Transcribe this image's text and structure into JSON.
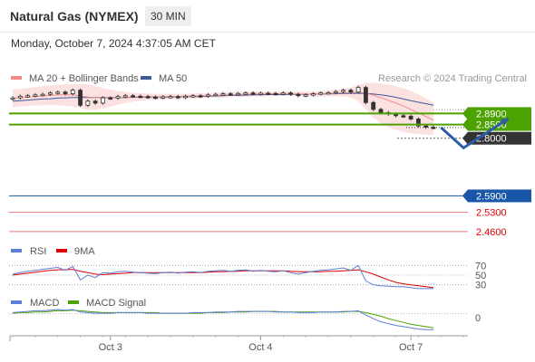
{
  "header": {
    "title": "Natural Gas (NYMEX)",
    "timeframe": "30 MIN",
    "datetime": "Monday, October 7, 2024 4:37:05 AM CET"
  },
  "colors": {
    "ma20": "#f08a8a",
    "bollinger_fill": "#fbdcdc",
    "ma50": "#3d5a99",
    "candle": "#333333",
    "green_level": "#4ca200",
    "blue_level": "#1a56a8",
    "red_level": "#e87878",
    "arrow": "#2e5da8",
    "rsi": "#5b7fd6",
    "rsi_9ma": "#e00000",
    "macd": "#5b7fd6",
    "macd_signal": "#4ca200"
  },
  "chart_data": [
    {
      "type": "candlestick",
      "panel": "price",
      "legend": [
        {
          "name": "MA 20 + Bollinger Bands",
          "color": "#f08a8a"
        },
        {
          "name": "MA 50",
          "color": "#3d5a99"
        }
      ],
      "credit": "Research © 2024 Trading Central",
      "x_ticks": [
        {
          "label": "Oct 3",
          "index": 13
        },
        {
          "label": "Oct 4",
          "index": 33
        },
        {
          "label": "Oct 7",
          "index": 53
        }
      ],
      "ylim": [
        2.42,
        3.02
      ],
      "close": [
        2.947,
        2.953,
        2.955,
        2.958,
        2.96,
        2.965,
        2.968,
        2.962,
        2.975,
        2.92,
        2.935,
        2.928,
        2.947,
        2.946,
        2.952,
        2.955,
        2.953,
        2.952,
        2.95,
        2.948,
        2.951,
        2.952,
        2.949,
        2.953,
        2.955,
        2.953,
        2.958,
        2.96,
        2.962,
        2.96,
        2.963,
        2.965,
        2.962,
        2.964,
        2.963,
        2.962,
        2.965,
        2.96,
        2.955,
        2.958,
        2.962,
        2.965,
        2.966,
        2.97,
        2.975,
        2.968,
        2.985,
        2.93,
        2.905,
        2.893,
        2.888,
        2.882,
        2.88,
        2.87,
        2.845,
        2.84,
        2.839
      ],
      "ma20": [
        2.945,
        2.948,
        2.95,
        2.952,
        2.954,
        2.956,
        2.958,
        2.958,
        2.958,
        2.954,
        2.95,
        2.948,
        2.947,
        2.947,
        2.948,
        2.949,
        2.95,
        2.951,
        2.951,
        2.951,
        2.951,
        2.952,
        2.952,
        2.953,
        2.954,
        2.954,
        2.955,
        2.956,
        2.957,
        2.958,
        2.959,
        2.96,
        2.961,
        2.961,
        2.962,
        2.962,
        2.962,
        2.962,
        2.961,
        2.961,
        2.961,
        2.962,
        2.963,
        2.964,
        2.966,
        2.966,
        2.968,
        2.964,
        2.957,
        2.948,
        2.938,
        2.928,
        2.917,
        2.905,
        2.892,
        2.879,
        2.866
      ],
      "bb_upper": [
        2.978,
        2.98,
        2.983,
        2.986,
        2.99,
        2.993,
        2.995,
        2.996,
        2.997,
        2.998,
        2.996,
        2.99,
        2.983,
        2.977,
        2.972,
        2.969,
        2.966,
        2.964,
        2.963,
        2.962,
        2.962,
        2.962,
        2.962,
        2.962,
        2.963,
        2.964,
        2.965,
        2.966,
        2.968,
        2.969,
        2.97,
        2.97,
        2.97,
        2.97,
        2.97,
        2.97,
        2.97,
        2.97,
        2.97,
        2.97,
        2.97,
        2.971,
        2.973,
        2.976,
        2.98,
        2.985,
        2.995,
        3.0,
        3.002,
        3.0,
        2.995,
        2.99,
        2.982,
        2.972,
        2.96,
        2.945,
        2.93
      ],
      "bb_lower": [
        2.912,
        2.915,
        2.918,
        2.919,
        2.92,
        2.92,
        2.92,
        2.918,
        2.915,
        2.91,
        2.904,
        2.904,
        2.908,
        2.915,
        2.922,
        2.928,
        2.933,
        2.937,
        2.939,
        2.94,
        2.941,
        2.942,
        2.942,
        2.943,
        2.944,
        2.945,
        2.946,
        2.947,
        2.948,
        2.949,
        2.95,
        2.951,
        2.952,
        2.952,
        2.953,
        2.954,
        2.954,
        2.954,
        2.953,
        2.952,
        2.951,
        2.951,
        2.952,
        2.952,
        2.952,
        2.948,
        2.935,
        2.905,
        2.875,
        2.855,
        2.84,
        2.83,
        2.823,
        2.818,
        2.815,
        2.813,
        2.812
      ],
      "ma50": [
        2.935,
        2.937,
        2.939,
        2.941,
        2.943,
        2.944,
        2.946,
        2.947,
        2.948,
        2.948,
        2.948,
        2.948,
        2.948,
        2.948,
        2.948,
        2.948,
        2.949,
        2.949,
        2.95,
        2.95,
        2.95,
        2.95,
        2.951,
        2.951,
        2.952,
        2.952,
        2.953,
        2.954,
        2.955,
        2.956,
        2.956,
        2.957,
        2.958,
        2.958,
        2.959,
        2.959,
        2.959,
        2.96,
        2.96,
        2.96,
        2.961,
        2.961,
        2.962,
        2.962,
        2.963,
        2.963,
        2.964,
        2.963,
        2.961,
        2.958,
        2.954,
        2.949,
        2.943,
        2.937,
        2.931,
        2.926,
        2.92
      ],
      "levels": [
        {
          "value": 2.89,
          "label": "2.8900",
          "kind": "green-box"
        },
        {
          "value": 2.85,
          "label": "2.8500",
          "kind": "green-box"
        },
        {
          "value": 2.8,
          "label": "2.8000",
          "kind": "dark-box"
        },
        {
          "value": 2.59,
          "label": "2.5900",
          "kind": "blue-box"
        },
        {
          "value": 2.53,
          "label": "2.5300",
          "kind": "red-text"
        },
        {
          "value": 2.46,
          "label": "2.4600",
          "kind": "red-text"
        }
      ],
      "forecast_path": [
        [
          57,
          2.839
        ],
        [
          60,
          2.765
        ],
        [
          66,
          2.872
        ]
      ]
    },
    {
      "type": "line",
      "panel": "rsi",
      "legend": [
        {
          "name": "RSI",
          "color": "#5b7fd6"
        },
        {
          "name": "9MA",
          "color": "#e00000"
        }
      ],
      "ylim": [
        20,
        80
      ],
      "levels": [
        70,
        50,
        30
      ],
      "series": [
        {
          "name": "RSI",
          "values": [
            52,
            55,
            58,
            60,
            62,
            64,
            66,
            60,
            68,
            40,
            50,
            45,
            55,
            54,
            57,
            58,
            56,
            55,
            54,
            53,
            55,
            56,
            54,
            56,
            57,
            55,
            58,
            59,
            60,
            58,
            60,
            61,
            58,
            60,
            58,
            57,
            59,
            55,
            52,
            55,
            58,
            60,
            61,
            63,
            65,
            60,
            70,
            38,
            30,
            28,
            27,
            26,
            26,
            24,
            22,
            22,
            22
          ]
        },
        {
          "name": "9MA",
          "values": [
            50,
            52,
            54,
            56,
            58,
            60,
            61,
            61,
            62,
            58,
            55,
            52,
            51,
            52,
            53,
            54,
            55,
            55,
            55,
            55,
            55,
            55,
            55,
            55,
            55,
            55,
            56,
            57,
            57,
            58,
            58,
            59,
            59,
            59,
            59,
            59,
            59,
            58,
            57,
            57,
            57,
            57,
            58,
            58,
            59,
            60,
            61,
            57,
            52,
            46,
            40,
            35,
            32,
            30,
            28,
            26,
            24
          ]
        }
      ]
    },
    {
      "type": "line",
      "panel": "macd",
      "legend": [
        {
          "name": "MACD",
          "color": "#5b7fd6"
        },
        {
          "name": "MACD Signal",
          "color": "#4ca200"
        }
      ],
      "y_ticks": [
        0
      ],
      "ylim": [
        -0.03,
        0.01
      ],
      "series": [
        {
          "name": "MACD",
          "values": [
            0.002,
            0.003,
            0.004,
            0.005,
            0.005,
            0.006,
            0.007,
            0.006,
            0.007,
            0.003,
            0.002,
            0.001,
            0.001,
            0.001,
            0.002,
            0.002,
            0.002,
            0.002,
            0.001,
            0.001,
            0.001,
            0.001,
            0.001,
            0.001,
            0.002,
            0.002,
            0.002,
            0.003,
            0.003,
            0.003,
            0.004,
            0.004,
            0.004,
            0.004,
            0.004,
            0.003,
            0.003,
            0.003,
            0.002,
            0.002,
            0.002,
            0.003,
            0.003,
            0.003,
            0.004,
            0.004,
            0.005,
            -0.002,
            -0.008,
            -0.013,
            -0.016,
            -0.019,
            -0.021,
            -0.023,
            -0.025,
            -0.026,
            -0.026
          ]
        },
        {
          "name": "MACD Signal",
          "values": [
            0.001,
            0.002,
            0.002,
            0.003,
            0.003,
            0.004,
            0.005,
            0.005,
            0.006,
            0.005,
            0.004,
            0.003,
            0.002,
            0.002,
            0.002,
            0.002,
            0.002,
            0.002,
            0.002,
            0.002,
            0.001,
            0.001,
            0.001,
            0.001,
            0.001,
            0.001,
            0.002,
            0.002,
            0.002,
            0.003,
            0.003,
            0.003,
            0.004,
            0.004,
            0.004,
            0.004,
            0.003,
            0.003,
            0.003,
            0.003,
            0.003,
            0.003,
            0.003,
            0.003,
            0.003,
            0.004,
            0.004,
            0.002,
            -0.001,
            -0.004,
            -0.008,
            -0.011,
            -0.014,
            -0.017,
            -0.019,
            -0.021,
            -0.023
          ]
        }
      ]
    }
  ]
}
